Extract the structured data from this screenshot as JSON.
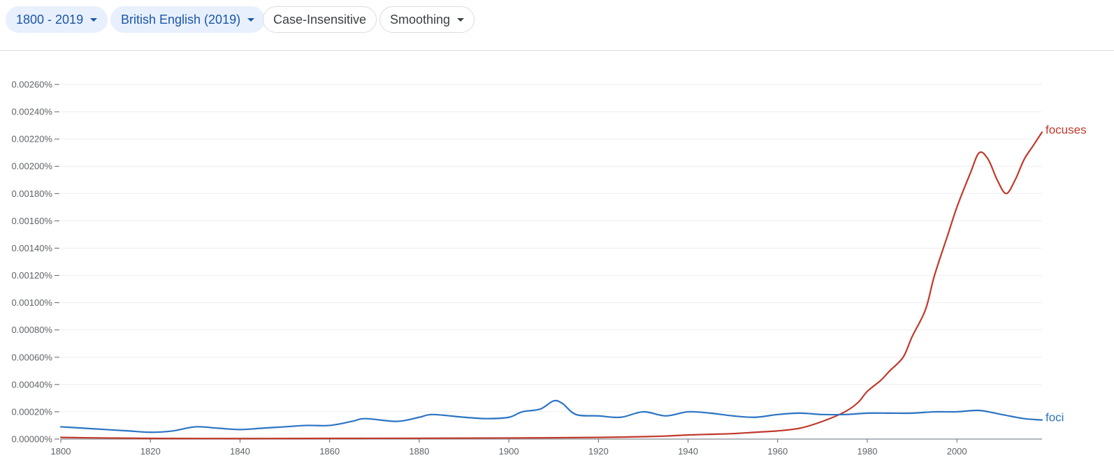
{
  "toolbar": {
    "year_range": "1800 - 2019",
    "corpus": "British English (2019)",
    "case": "Case-Insensitive",
    "smoothing": "Smoothing"
  },
  "colors": {
    "focuses": "#c0392b",
    "foci": "#2c74c3",
    "chip_fill": "#e8f0fe",
    "chip_text": "#1a56a8"
  },
  "chart_data": {
    "type": "line",
    "xlabel": "",
    "ylabel": "",
    "xlim": [
      1800,
      2019
    ],
    "ylim": [
      0,
      0.0026
    ],
    "grid": true,
    "x_ticks": [
      1800,
      1820,
      1840,
      1860,
      1880,
      1900,
      1920,
      1940,
      1960,
      1980,
      2000
    ],
    "x_tick_labels": [
      "1800",
      "1820",
      "1840",
      "1860",
      "1880",
      "1900",
      "1920",
      "1940",
      "1960",
      "1980",
      "2000"
    ],
    "y_ticks": [
      0,
      0.0002,
      0.0004,
      0.0006,
      0.0008,
      0.001,
      0.0012,
      0.0014,
      0.0016,
      0.0018,
      0.002,
      0.0022,
      0.0024,
      0.0026
    ],
    "y_tick_labels": [
      "0.00000%",
      "0.00020%",
      "0.00040%",
      "0.00060%",
      "0.00080%",
      "0.00100%",
      "0.00120%",
      "0.00140%",
      "0.00160%",
      "0.00180%",
      "0.00200%",
      "0.00220%",
      "0.00240%",
      "0.00260%"
    ],
    "series": [
      {
        "name": "focuses",
        "color": "#c0392b",
        "points": [
          [
            1800,
            1.2e-05
          ],
          [
            1810,
            8e-06
          ],
          [
            1820,
            5e-06
          ],
          [
            1840,
            4e-06
          ],
          [
            1860,
            5e-06
          ],
          [
            1880,
            6e-06
          ],
          [
            1900,
            8e-06
          ],
          [
            1920,
            1.2e-05
          ],
          [
            1930,
            1.8e-05
          ],
          [
            1935,
            2.2e-05
          ],
          [
            1940,
            3e-05
          ],
          [
            1945,
            3.5e-05
          ],
          [
            1950,
            4e-05
          ],
          [
            1955,
            5e-05
          ],
          [
            1960,
            6e-05
          ],
          [
            1965,
            8e-05
          ],
          [
            1970,
            0.00013
          ],
          [
            1975,
            0.0002
          ],
          [
            1978,
            0.00027
          ],
          [
            1980,
            0.00035
          ],
          [
            1983,
            0.00043
          ],
          [
            1985,
            0.0005
          ],
          [
            1988,
            0.0006
          ],
          [
            1990,
            0.00075
          ],
          [
            1993,
            0.00095
          ],
          [
            1995,
            0.0012
          ],
          [
            1998,
            0.0015
          ],
          [
            2000,
            0.0017
          ],
          [
            2003,
            0.00195
          ],
          [
            2005,
            0.0021
          ],
          [
            2007,
            0.00205
          ],
          [
            2009,
            0.0019
          ],
          [
            2011,
            0.0018
          ],
          [
            2013,
            0.0019
          ],
          [
            2015,
            0.00205
          ],
          [
            2017,
            0.00215
          ],
          [
            2019,
            0.00225
          ]
        ]
      },
      {
        "name": "foci",
        "color": "#2c74c3",
        "points": [
          [
            1800,
            9e-05
          ],
          [
            1805,
            8e-05
          ],
          [
            1810,
            7e-05
          ],
          [
            1815,
            6e-05
          ],
          [
            1820,
            5e-05
          ],
          [
            1825,
            6e-05
          ],
          [
            1830,
            9e-05
          ],
          [
            1835,
            8e-05
          ],
          [
            1840,
            7e-05
          ],
          [
            1845,
            8e-05
          ],
          [
            1850,
            9e-05
          ],
          [
            1855,
            0.0001
          ],
          [
            1860,
            0.0001
          ],
          [
            1865,
            0.00013
          ],
          [
            1868,
            0.00015
          ],
          [
            1875,
            0.00013
          ],
          [
            1880,
            0.00016
          ],
          [
            1883,
            0.00018
          ],
          [
            1890,
            0.00016
          ],
          [
            1895,
            0.00015
          ],
          [
            1900,
            0.00016
          ],
          [
            1903,
            0.0002
          ],
          [
            1907,
            0.00022
          ],
          [
            1910,
            0.00028
          ],
          [
            1912,
            0.00026
          ],
          [
            1915,
            0.00018
          ],
          [
            1920,
            0.00017
          ],
          [
            1925,
            0.00016
          ],
          [
            1930,
            0.0002
          ],
          [
            1935,
            0.00017
          ],
          [
            1940,
            0.0002
          ],
          [
            1945,
            0.00019
          ],
          [
            1950,
            0.00017
          ],
          [
            1955,
            0.00016
          ],
          [
            1960,
            0.00018
          ],
          [
            1965,
            0.00019
          ],
          [
            1970,
            0.00018
          ],
          [
            1975,
            0.00018
          ],
          [
            1980,
            0.00019
          ],
          [
            1985,
            0.00019
          ],
          [
            1990,
            0.00019
          ],
          [
            1995,
            0.0002
          ],
          [
            2000,
            0.0002
          ],
          [
            2005,
            0.00021
          ],
          [
            2010,
            0.00018
          ],
          [
            2015,
            0.00015
          ],
          [
            2019,
            0.00014
          ]
        ]
      }
    ]
  }
}
